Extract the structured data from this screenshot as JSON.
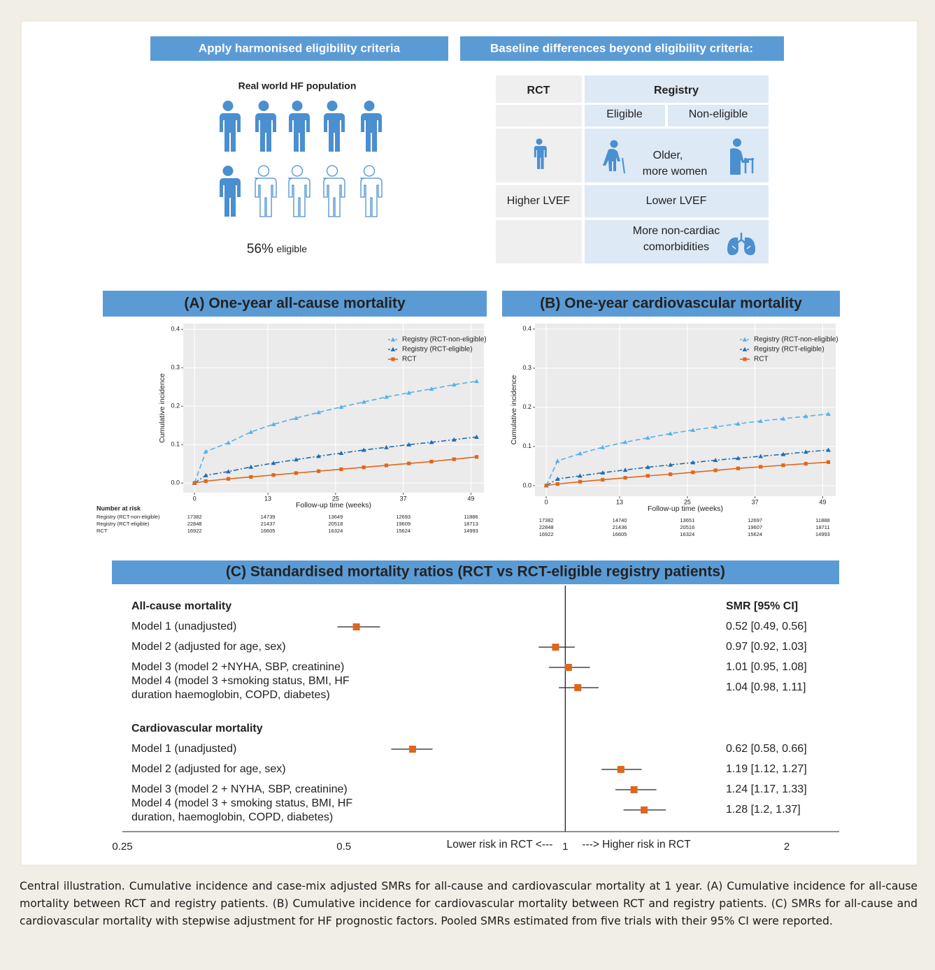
{
  "eligibility": {
    "title": "Apply harmonised  eligibility criteria",
    "subtitle": "Real world HF population",
    "share": "56%",
    "share_word": "eligible"
  },
  "baseline": {
    "title": "Baseline differences beyond eligibility criteria:",
    "columns": [
      "RCT",
      "Registry"
    ],
    "subcolumns": [
      "Eligible",
      "Non-eligible"
    ],
    "rows": [
      {
        "registry": [
          "Older,",
          "more women"
        ]
      },
      {
        "rct": "Higher LVEF",
        "registry": [
          "Lower LVEF"
        ]
      },
      {
        "registry": [
          "More non-cardiac",
          "comorbidities"
        ]
      }
    ]
  },
  "chart_data": [
    {
      "type": "line",
      "title": "(A) One-year all-cause mortality",
      "x_label": "Follow-up time (weeks)",
      "y_label": "Cumulative incidence",
      "x": [
        0,
        2,
        6,
        10,
        14,
        18,
        22,
        26,
        30,
        34,
        38,
        42,
        46,
        50
      ],
      "series": [
        {
          "name": "Registry (RCT-non-eligible)",
          "color": "#56b1e8",
          "dash": "dashed",
          "marker": "triangle",
          "values": [
            0,
            0.082,
            0.105,
            0.133,
            0.153,
            0.169,
            0.184,
            0.198,
            0.211,
            0.224,
            0.235,
            0.245,
            0.256,
            0.265
          ]
        },
        {
          "name": "Registry (RCT-eligible)",
          "color": "#1f6db3",
          "dash": "dotdash",
          "marker": "triangle",
          "values": [
            0,
            0.02,
            0.03,
            0.042,
            0.052,
            0.061,
            0.07,
            0.078,
            0.086,
            0.093,
            0.1,
            0.106,
            0.113,
            0.12
          ]
        },
        {
          "name": "RCT",
          "color": "#e0661c",
          "dash": "solid",
          "marker": "square",
          "values": [
            0,
            0.005,
            0.011,
            0.016,
            0.021,
            0.026,
            0.031,
            0.036,
            0.041,
            0.046,
            0.051,
            0.056,
            0.062,
            0.068
          ]
        }
      ],
      "xlim": [
        -2,
        51.3
      ],
      "ylim": [
        -0.025,
        0.415
      ],
      "xticks": [
        0,
        13,
        25,
        37,
        49
      ],
      "yticks": [
        {
          "value": 0,
          "label": "0.0"
        },
        0.1,
        0.2,
        0.3,
        0.4
      ],
      "grid": true,
      "legend": "top-right",
      "risk_table": {
        "title": "Number at risk",
        "row_names": [
          "Registry (RCT-non-eligible)",
          "Registry (RCT-eligible)",
          "RCT"
        ],
        "values": [
          [
            17382,
            14739,
            13649,
            12693,
            11886
          ],
          [
            22848,
            21437,
            20518,
            19609,
            18713
          ],
          [
            16922,
            16605,
            16324,
            15624,
            14993
          ]
        ]
      }
    },
    {
      "type": "line",
      "title": "(B) One-year cardiovascular mortality",
      "x_label": "Follow-up time (weeks)",
      "y_label": "Cumulative incidence",
      "x": [
        0,
        2,
        6,
        10,
        14,
        18,
        22,
        26,
        30,
        34,
        38,
        42,
        46,
        50
      ],
      "series": [
        {
          "name": "Registry (RCT-non-eligible)",
          "color": "#56b1e8",
          "dash": "dashed",
          "marker": "triangle",
          "values": [
            0,
            0.063,
            0.082,
            0.098,
            0.111,
            0.122,
            0.133,
            0.142,
            0.15,
            0.158,
            0.165,
            0.171,
            0.177,
            0.183
          ]
        },
        {
          "name": "Registry (RCT-eligible)",
          "color": "#1f6db3",
          "dash": "dotdash",
          "marker": "triangle",
          "values": [
            0,
            0.017,
            0.025,
            0.033,
            0.04,
            0.047,
            0.053,
            0.059,
            0.065,
            0.07,
            0.075,
            0.08,
            0.086,
            0.091
          ]
        },
        {
          "name": "RCT",
          "color": "#e0661c",
          "dash": "solid",
          "marker": "square",
          "values": [
            0,
            0.004,
            0.01,
            0.015,
            0.02,
            0.025,
            0.029,
            0.034,
            0.039,
            0.044,
            0.048,
            0.052,
            0.056,
            0.06
          ]
        }
      ],
      "xlim": [
        -2,
        51.3
      ],
      "ylim": [
        -0.027,
        0.414
      ],
      "xticks": [
        0,
        13,
        25,
        37,
        49
      ],
      "yticks": [
        {
          "value": 0,
          "label": "0.0"
        },
        0.1,
        0.2,
        0.3,
        0.4
      ],
      "grid": true,
      "legend": "top-right",
      "risk_table": {
        "values": [
          [
            17382,
            14740,
            13651,
            12697,
            11888
          ],
          [
            22848,
            21436,
            20516,
            19607,
            18711
          ],
          [
            16922,
            16605,
            16324,
            15624,
            14993
          ]
        ]
      }
    },
    {
      "type": "forest",
      "title": "(C) Standardised mortality ratios  (RCT vs RCT-eligible registry patients)",
      "value_header": "SMR [95% CI]",
      "log_scale": true,
      "xlim": [
        0.25,
        2
      ],
      "xticks": [
        0.25,
        0.5,
        1,
        2
      ],
      "color": "#e0661c",
      "annotations": [
        "Lower risk in RCT <---",
        "---> Higher risk in RCT"
      ],
      "groups": [
        {
          "name": "All-cause  mortality",
          "labels": [
            [
              "Model  1 (unadjusted)"
            ],
            [
              "Model  2 (adjusted for age, sex)"
            ],
            [
              "Model  3 (model 2 +NYHA,  SBP, creatinine)"
            ],
            [
              "Model  4 (model 3 +smoking status, BMI,  HF",
              "duration haemoglobin,  COPD, diabetes)"
            ]
          ],
          "values": [
            0.52,
            0.97,
            1.01,
            1.04
          ],
          "lower": [
            0.49,
            0.92,
            0.95,
            0.98
          ],
          "upper": [
            0.56,
            1.03,
            1.08,
            1.11
          ],
          "value_labels": [
            "0.52 [0.49, 0.56]",
            "0.97 [0.92, 1.03]",
            "1.01 [0.95, 1.08]",
            "1.04 [0.98, 1.11]"
          ]
        },
        {
          "name": "Cardiovascular  mortality",
          "labels": [
            [
              "Model  1 (unadjusted)"
            ],
            [
              "Model  2 (adjusted for age, sex)"
            ],
            [
              "Model  3 (model 2 + NYHA,  SBP, creatinine)"
            ],
            [
              "Model  4 (model 3 + smoking status, BMI,  HF",
              "duration,  haemoglobin,  COPD, diabetes)"
            ]
          ],
          "values": [
            0.62,
            1.19,
            1.24,
            1.28
          ],
          "lower": [
            0.58,
            1.12,
            1.17,
            1.2
          ],
          "upper": [
            0.66,
            1.27,
            1.33,
            1.37
          ],
          "value_labels": [
            "0.62 [0.58, 0.66]",
            "1.19 [1.12, 1.27]",
            "1.24 [1.17, 1.33]",
            "1.28 [1.2, 1.37]"
          ]
        }
      ]
    }
  ],
  "caption": "Central illustration. Cumulative incidence and case-mix adjusted SMRs for all-cause and cardiovascular mortality at 1 year. (A) Cumulative incidence for all-cause mortality between RCT and registry patients. (B) Cumulative incidence for cardiovascular mortality between RCT and registry patients. (C) SMRs for all-cause and cardiovascular mortality with stepwise adjustment for HF prognostic factors. Pooled SMRs estimated from five trials with their 95% CI were reported."
}
